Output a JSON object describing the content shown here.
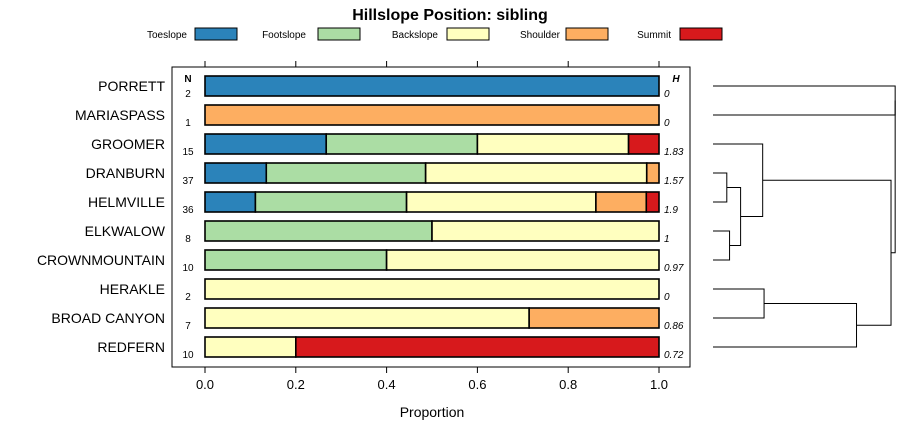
{
  "chart_data": {
    "type": "bar",
    "orientation": "horizontal",
    "stacked": true,
    "title": "Hillslope Position: sibling",
    "xlabel": "Proportion",
    "xlim": [
      0,
      1
    ],
    "xticks": [
      0.0,
      0.2,
      0.4,
      0.6,
      0.8,
      1.0
    ],
    "xtick_labels": [
      "0.0",
      "0.2",
      "0.4",
      "0.6",
      "0.8",
      "1.0"
    ],
    "n_header": "N",
    "h_header": "H",
    "legend_position": "top",
    "categories": [
      "PORRETT",
      "MARIASPASS",
      "GROOMER",
      "DRANBURN",
      "HELMVILLE",
      "ELKWALOW",
      "CROWNMOUNTAIN",
      "HERAKLE",
      "BROAD CANYON",
      "REDFERN"
    ],
    "n": [
      "2",
      "1",
      "15",
      "37",
      "36",
      "8",
      "10",
      "2",
      "7",
      "10"
    ],
    "h": [
      "0",
      "0",
      "1.83",
      "1.57",
      "1.9",
      "1",
      "0.97",
      "0",
      "0.86",
      "0.72"
    ],
    "series": [
      {
        "name": "Toeslope",
        "color": "#2B83BA",
        "values": [
          1.0,
          0.0,
          0.267,
          0.135,
          0.111,
          0.0,
          0.0,
          0.0,
          0.0,
          0.0
        ]
      },
      {
        "name": "Footslope",
        "color": "#ABDDA4",
        "values": [
          0.0,
          0.0,
          0.333,
          0.351,
          0.333,
          0.5,
          0.4,
          0.0,
          0.0,
          0.0
        ]
      },
      {
        "name": "Backslope",
        "color": "#FFFFBF",
        "values": [
          0.0,
          0.0,
          0.333,
          0.487,
          0.417,
          0.5,
          0.6,
          1.0,
          0.714,
          0.2
        ]
      },
      {
        "name": "Shoulder",
        "color": "#FDAE61",
        "values": [
          0.0,
          1.0,
          0.0,
          0.027,
          0.111,
          0.0,
          0.0,
          0.0,
          0.286,
          0.0
        ]
      },
      {
        "name": "Summit",
        "color": "#D7191C",
        "values": [
          0.0,
          0.0,
          0.067,
          0.0,
          0.028,
          0.0,
          0.0,
          0.0,
          0.0,
          0.8
        ]
      }
    ],
    "dendrogram": {
      "merges": [
        {
          "left": "ELKWALOW",
          "right": "CROWNMOUNTAIN",
          "height": 0.12
        },
        {
          "left": "DRANBURN",
          "right": "HELMVILLE",
          "height": 0.1
        },
        {
          "left": "DRANBURN+HELMVILLE",
          "right": "ELKWALOW+CROWNMOUNTAIN",
          "height": 0.2
        },
        {
          "left": "GROOMER",
          "right": "DRANBURN+HELMVILLE+ELKWALOW+CROWNMOUNTAIN",
          "height": 0.35
        },
        {
          "left": "HERAKLE",
          "right": "BROAD CANYON",
          "height": 0.35
        },
        {
          "left": "HERAKLE+BROAD CANYON",
          "right": "REDFERN",
          "height": 0.9
        },
        {
          "left": "PORRETT",
          "right": "MARIASPASS",
          "height": 1.3
        },
        {
          "left": "GROOMER..CROWNMOUNTAIN",
          "right": "HERAKLE..REDFERN",
          "height": 1.0
        },
        {
          "left": "PORRETT+MARIASPASS",
          "right": "rest",
          "height": 1.3
        }
      ]
    }
  }
}
